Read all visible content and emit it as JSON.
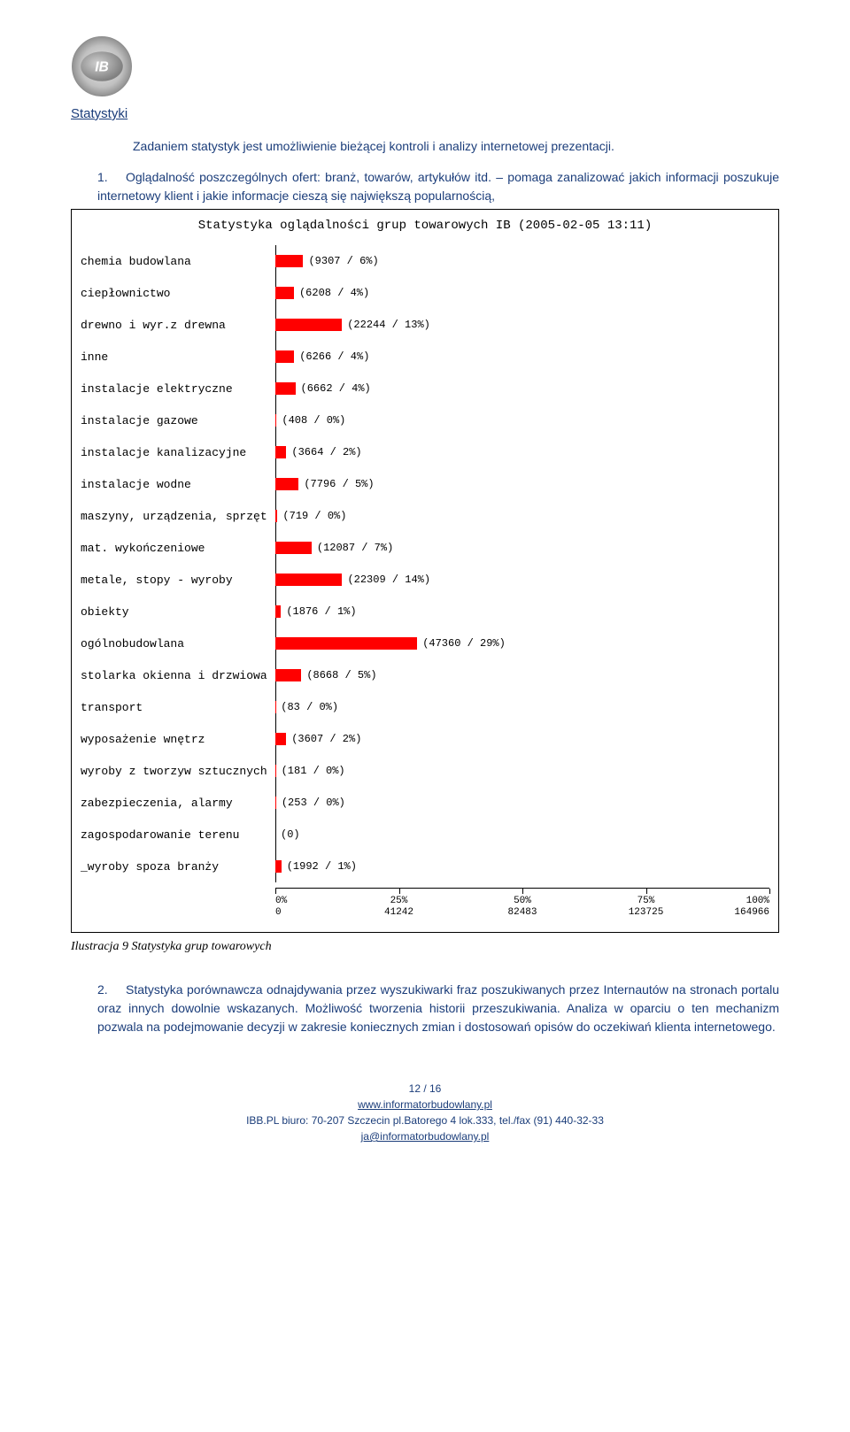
{
  "doc": {
    "section_heading": "Statystyki",
    "intro": "Zadaniem statystyk jest umożliwienie bieżącej kontroli i analizy internetowej prezentacji.",
    "item1_num": "1.",
    "item1_text": "Oglądalność poszczególnych ofert: branż, towarów, artykułów itd. – pomaga zanalizować jakich informacji poszukuje internetowy klient i jakie informacje cieszą się największą popularnością,",
    "item2_num": "2.",
    "item2_text": "Statystyka porównawcza odnajdywania przez wyszukiwarki fraz poszukiwanych przez Internautów na stronach portalu oraz innych dowolnie wskazanych. Możliwość tworzenia historii przeszukiwania. Analiza w oparciu o ten mechanizm pozwala na podejmowanie decyzji w  zakresie koniecznych zmian i dostosowań opisów do oczekiwań klienta internetowego.",
    "caption": "Ilustracja 9 Statystyka grup towarowych"
  },
  "chart": {
    "title": "Statystyka oglądalności grup towarowych IB (2005-02-05 13:11)",
    "bar_color": "#ff0000",
    "border_color": "#000000",
    "max_value": 164966,
    "categories": [
      {
        "label": "chemia budowlana",
        "value": 9307,
        "pct": "6%"
      },
      {
        "label": "ciepłownictwo",
        "value": 6208,
        "pct": "4%"
      },
      {
        "label": "drewno i wyr.z drewna",
        "value": 22244,
        "pct": "13%"
      },
      {
        "label": "inne",
        "value": 6266,
        "pct": "4%"
      },
      {
        "label": "instalacje elektryczne",
        "value": 6662,
        "pct": "4%"
      },
      {
        "label": "instalacje gazowe",
        "value": 408,
        "pct": "0%"
      },
      {
        "label": "instalacje kanalizacyjne",
        "value": 3664,
        "pct": "2%"
      },
      {
        "label": "instalacje wodne",
        "value": 7796,
        "pct": "5%"
      },
      {
        "label": "maszyny, urządzenia, sprzęt",
        "value": 719,
        "pct": "0%"
      },
      {
        "label": "mat. wykończeniowe",
        "value": 12087,
        "pct": "7%"
      },
      {
        "label": "metale, stopy - wyroby",
        "value": 22309,
        "pct": "14%"
      },
      {
        "label": "obiekty",
        "value": 1876,
        "pct": "1%"
      },
      {
        "label": "ogólnobudowlana",
        "value": 47360,
        "pct": "29%"
      },
      {
        "label": "stolarka okienna i drzwiowa",
        "value": 8668,
        "pct": "5%"
      },
      {
        "label": "transport",
        "value": 83,
        "pct": "0%"
      },
      {
        "label": "wyposażenie wnętrz",
        "value": 3607,
        "pct": "2%"
      },
      {
        "label": "wyroby z tworzyw sztucznych",
        "value": 181,
        "pct": "0%"
      },
      {
        "label": "zabezpieczenia, alarmy",
        "value": 253,
        "pct": "0%"
      },
      {
        "label": "zagospodarowanie terenu",
        "value": 0,
        "pct": null
      },
      {
        "label": "_wyroby spoza branży",
        "value": 1992,
        "pct": "1%"
      }
    ],
    "x_ticks": [
      {
        "pct_label": "0%",
        "val_label": "0",
        "pos": 0.0
      },
      {
        "pct_label": "25%",
        "val_label": "41242",
        "pos": 0.25
      },
      {
        "pct_label": "50%",
        "val_label": "82483",
        "pos": 0.5
      },
      {
        "pct_label": "75%",
        "val_label": "123725",
        "pos": 0.75
      },
      {
        "pct_label": "100%",
        "val_label": "164966",
        "pos": 1.0
      }
    ]
  },
  "footer": {
    "page": "12 / 16",
    "url": "www.informatorbudowlany.pl",
    "addr": "IBB.PL biuro:  70-207 Szczecin pl.Batorego 4 lok.333, tel./fax (91) 440-32-33",
    "email": "ja@informatorbudowlany.pl"
  }
}
